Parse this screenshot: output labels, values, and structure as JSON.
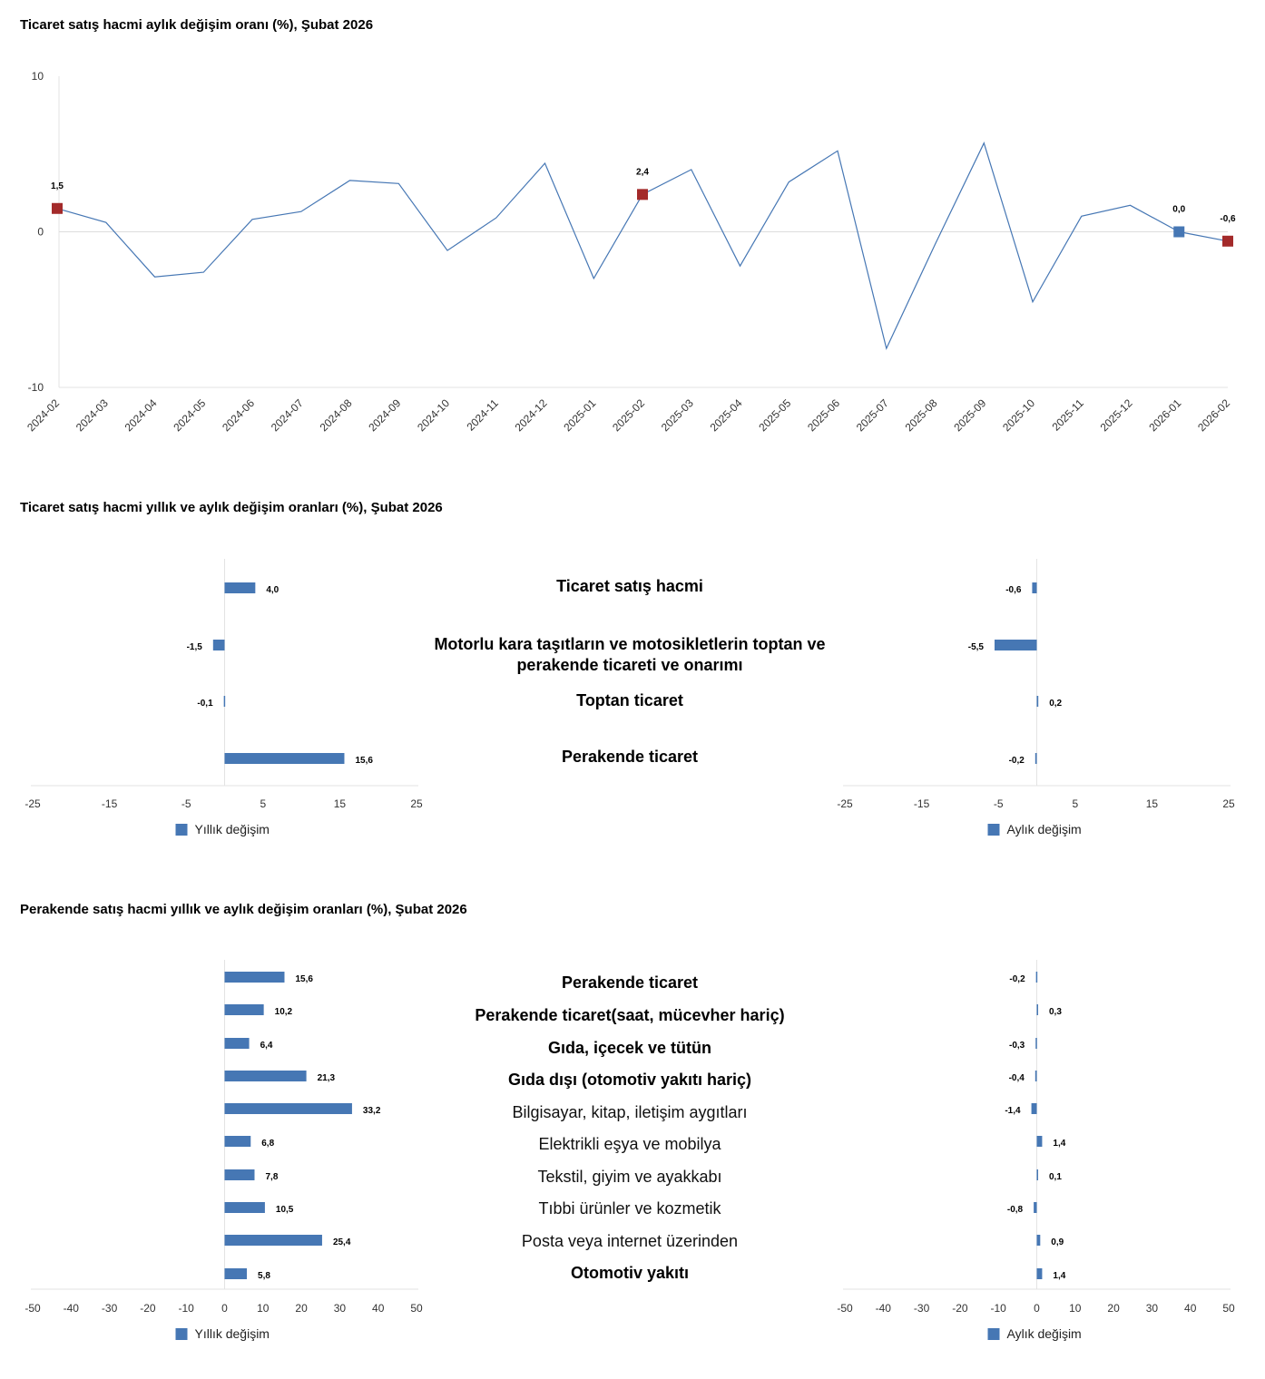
{
  "chart_data": [
    {
      "type": "line",
      "title": "Ticaret satış hacmi aylık değişim oranı (%), Şubat 2026",
      "x": [
        "2024-02",
        "2024-03",
        "2024-04",
        "2024-05",
        "2024-06",
        "2024-07",
        "2024-08",
        "2024-09",
        "2024-10",
        "2024-11",
        "2024-12",
        "2025-01",
        "2025-02",
        "2025-03",
        "2025-04",
        "2025-05",
        "2025-06",
        "2025-07",
        "2025-08",
        "2025-09",
        "2025-10",
        "2025-11",
        "2025-12",
        "2026-01",
        "2026-02"
      ],
      "values": [
        1.5,
        0.6,
        -2.9,
        -2.6,
        0.8,
        1.3,
        3.3,
        3.1,
        -1.2,
        0.9,
        4.4,
        -3.0,
        2.4,
        4.0,
        -2.2,
        3.2,
        5.2,
        -7.5,
        -0.8,
        5.7,
        -4.5,
        1.0,
        1.7,
        0.0,
        -0.6
      ],
      "highlighted_points": [
        {
          "index": 0,
          "label": "1,5",
          "color": "#a32a2a"
        },
        {
          "index": 12,
          "label": "2,4",
          "color": "#a32a2a"
        },
        {
          "index": 23,
          "label": "0,0",
          "color": "#4677b4"
        },
        {
          "index": 24,
          "label": "-0,6",
          "color": "#a32a2a"
        }
      ],
      "ylim": [
        -10,
        10
      ],
      "yticks": [
        "10",
        "0",
        "-10"
      ],
      "ytick_values": [
        10,
        0,
        -10
      ],
      "line_color": "#4677b4"
    },
    {
      "type": "bar",
      "orientation": "horizontal",
      "title": "Ticaret satış hacmi yıllık ve aylık değişim oranları (%), Şubat 2026",
      "categories": [
        {
          "label": "Ticaret satış hacmi",
          "bold": true
        },
        {
          "label": "Motorlu kara taşıtların ve motosikletlerin toptan ve perakende ticareti ve onarımı",
          "bold": true,
          "lines": [
            "Motorlu kara taşıtların ve motosikletlerin toptan ve",
            "perakende ticareti ve onarımı"
          ]
        },
        {
          "label": "Toptan ticaret",
          "bold": true
        },
        {
          "label": "Perakende ticaret",
          "bold": true
        }
      ],
      "series": [
        {
          "name": "Yıllık değişim",
          "values": [
            4.0,
            -1.5,
            -0.1,
            15.6
          ],
          "labels": [
            "4,0",
            "-1,5",
            "-0,1",
            "15,6"
          ]
        },
        {
          "name": "Aylık değişim",
          "values": [
            -0.6,
            -5.5,
            0.2,
            -0.2
          ],
          "labels": [
            "-0,6",
            "-5,5",
            "0,2",
            "-0,2"
          ]
        }
      ],
      "xlim": [
        -25,
        25
      ],
      "xticks": [
        "-25",
        "-15",
        "-5",
        "5",
        "15",
        "25"
      ],
      "xtick_values": [
        -25,
        -15,
        -5,
        5,
        15,
        25
      ],
      "bar_color": "#4677b4"
    },
    {
      "type": "bar",
      "orientation": "horizontal",
      "title": "Perakende satış hacmi yıllık ve aylık değişim oranları (%), Şubat 2026",
      "categories": [
        {
          "label": "Perakende ticaret",
          "bold": true
        },
        {
          "label": "Perakende ticaret(saat, mücevher hariç)",
          "bold": true
        },
        {
          "label": "Gıda, içecek ve tütün",
          "bold": true
        },
        {
          "label": "Gıda dışı (otomotiv yakıtı hariç)",
          "bold": true
        },
        {
          "label": "Bilgisayar, kitap, iletişim aygıtları",
          "bold": false
        },
        {
          "label": "Elektrikli eşya ve mobilya",
          "bold": false
        },
        {
          "label": "Tekstil, giyim ve ayakkabı",
          "bold": false
        },
        {
          "label": "Tıbbi ürünler ve kozmetik",
          "bold": false
        },
        {
          "label": "Posta veya internet üzerinden",
          "bold": false
        },
        {
          "label": "Otomotiv yakıtı",
          "bold": true
        }
      ],
      "series": [
        {
          "name": "Yıllık değişim",
          "values": [
            15.6,
            10.2,
            6.4,
            21.3,
            33.2,
            6.8,
            7.8,
            10.5,
            25.4,
            5.8
          ],
          "labels": [
            "15,6",
            "10,2",
            "6,4",
            "21,3",
            "33,2",
            "6,8",
            "7,8",
            "10,5",
            "25,4",
            "5,8"
          ]
        },
        {
          "name": "Aylık değişim",
          "values": [
            -0.2,
            0.3,
            -0.3,
            -0.4,
            -1.4,
            1.4,
            0.1,
            -0.8,
            0.9,
            1.4
          ],
          "labels": [
            "-0,2",
            "0,3",
            "-0,3",
            "-0,4",
            "-1,4",
            "1,4",
            "0,1",
            "-0,8",
            "0,9",
            "1,4"
          ]
        }
      ],
      "xlim": [
        -50,
        50
      ],
      "xticks": [
        "-50",
        "-40",
        "-30",
        "-20",
        "-10",
        "0",
        "10",
        "20",
        "30",
        "40",
        "50"
      ],
      "xtick_values": [
        -50,
        -40,
        -30,
        -20,
        -10,
        0,
        10,
        20,
        30,
        40,
        50
      ],
      "bar_color": "#4677b4"
    }
  ]
}
